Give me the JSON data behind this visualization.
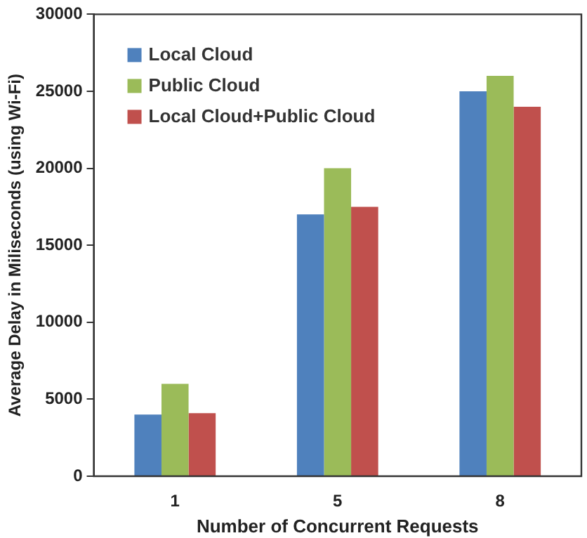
{
  "chart_data": {
    "type": "bar",
    "xlabel": "Number of Concurrent Requests",
    "ylabel": "Average Delay in Miliseconds (using Wi-Fi)",
    "categories": [
      "1",
      "5",
      "8"
    ],
    "series": [
      {
        "name": "Local Cloud",
        "color": "#4f81bd",
        "values": [
          4000,
          17000,
          25000
        ]
      },
      {
        "name": "Public Cloud",
        "color": "#9bbb59",
        "values": [
          6000,
          20000,
          26000
        ]
      },
      {
        "name": "Local Cloud+Public Cloud",
        "color": "#c0504d",
        "values": [
          4100,
          17500,
          24000
        ]
      }
    ],
    "ylim": [
      0,
      30000
    ],
    "yticks": [
      0,
      5000,
      10000,
      15000,
      20000,
      25000,
      30000
    ],
    "grid": false,
    "legend": "top left"
  }
}
